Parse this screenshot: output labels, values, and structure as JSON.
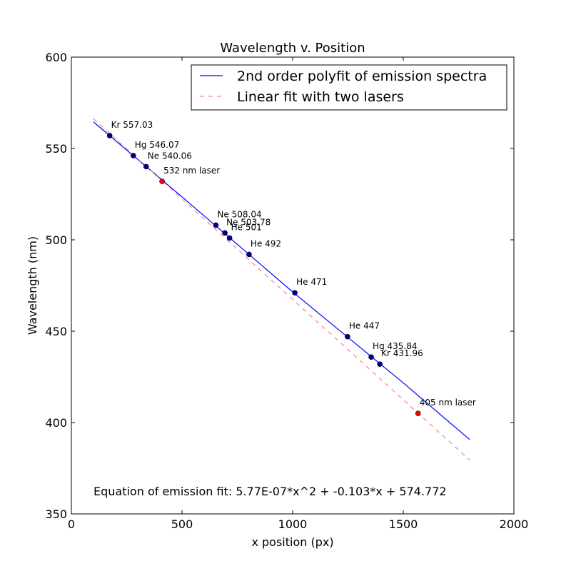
{
  "chart_data": {
    "type": "scatter",
    "title": "Wavelength v. Position",
    "xlabel": "x position (px)",
    "ylabel": "Wavelength (nm)",
    "xlim": [
      0,
      2000
    ],
    "ylim": [
      350,
      600
    ],
    "x_ticks": [
      0,
      500,
      1000,
      1500,
      2000
    ],
    "y_ticks": [
      350,
      400,
      450,
      500,
      550,
      600
    ],
    "grid": false,
    "legend_position": "top-right",
    "annotation_text": "Equation of emission fit: 5.77E-07*x^2 + -0.103*x + 574.772",
    "series": [
      {
        "name": "2nd order polyfit of emission spectra",
        "kind": "line",
        "style": "solid",
        "color": "#0000ff",
        "points": [
          [
            100,
            564.5
          ],
          [
            500,
            523.5
          ],
          [
            1000,
            471.5
          ],
          [
            1500,
            421.7
          ],
          [
            1800,
            390.7
          ]
        ]
      },
      {
        "name": "Linear fit with two lasers",
        "kind": "line",
        "style": "dashed",
        "color": "#ff8080",
        "points": [
          [
            100,
            566.3
          ],
          [
            1800,
            379.5
          ]
        ]
      },
      {
        "kind": "points",
        "color": "#00008b",
        "points": [
          {
            "x": 173,
            "y": 557.03,
            "label": "Kr 557.03"
          },
          {
            "x": 280,
            "y": 546.07,
            "label": "Hg 546.07"
          },
          {
            "x": 338,
            "y": 540.06,
            "label": "Ne 540.06"
          },
          {
            "x": 653,
            "y": 508.04,
            "label": "Ne 508.04"
          },
          {
            "x": 694,
            "y": 503.78,
            "label": "Ne 503.78"
          },
          {
            "x": 715,
            "y": 501,
            "label": "He 501"
          },
          {
            "x": 803,
            "y": 492,
            "label": "He 492"
          },
          {
            "x": 1010,
            "y": 471,
            "label": "He 471"
          },
          {
            "x": 1248,
            "y": 447,
            "label": "He 447"
          },
          {
            "x": 1355,
            "y": 435.84,
            "label": "Hg 435.84"
          },
          {
            "x": 1394,
            "y": 431.96,
            "label": "Kr 431.96"
          }
        ]
      },
      {
        "kind": "points",
        "color": "#ff0000",
        "points": [
          {
            "x": 410,
            "y": 532,
            "label": "532 nm laser"
          },
          {
            "x": 1567,
            "y": 405,
            "label": "405 nm laser"
          }
        ]
      }
    ]
  }
}
